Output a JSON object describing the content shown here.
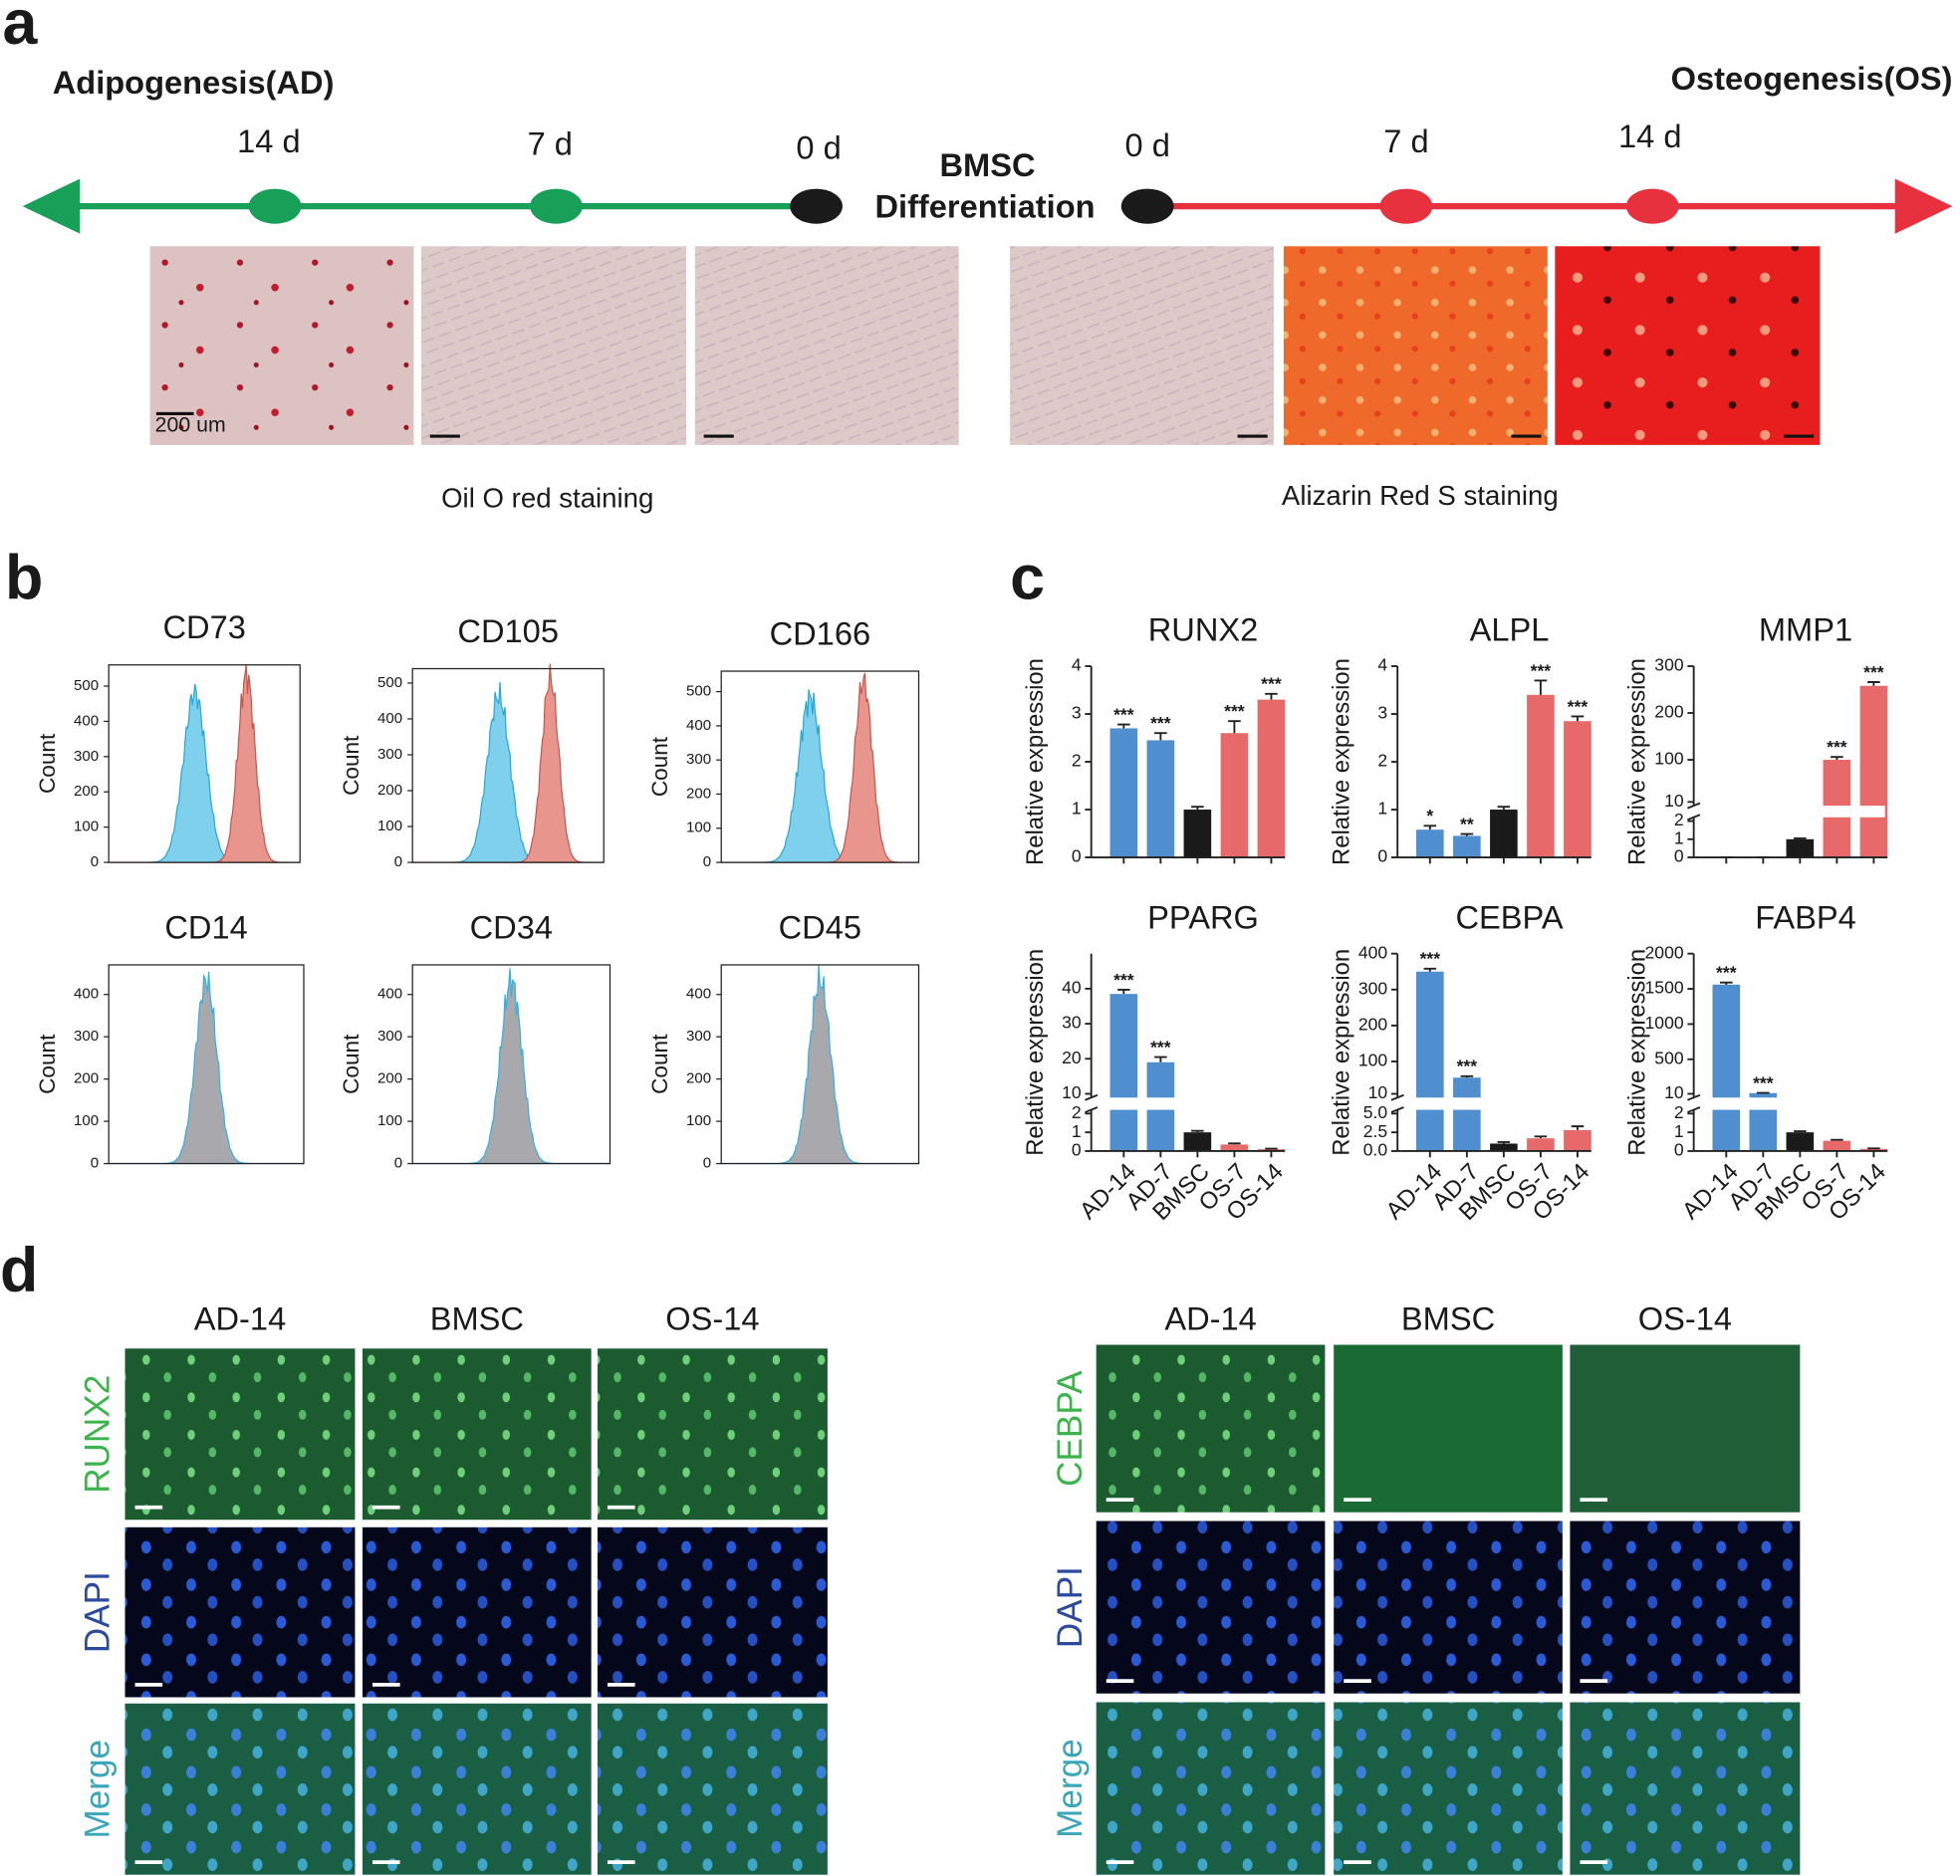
{
  "panel_a": {
    "label": "a",
    "left_title": "Adipogenesis(AD)",
    "right_title": "Osteogenesis(OS)",
    "center": [
      "BMSC",
      "Differentiation"
    ],
    "left_days": [
      "14 d",
      "7 d",
      "0 d"
    ],
    "right_days": [
      "0 d",
      "7 d",
      "14 d"
    ],
    "scale_label": "200 um",
    "captions": [
      "Oil O red staining",
      "Alizarin Red S  staining"
    ]
  },
  "panel_b": {
    "label": "b",
    "plots": [
      {
        "title": "CD73",
        "y_label": "Count",
        "ylim": [
          0,
          560
        ],
        "yticks": [
          0,
          100,
          200,
          300,
          400,
          500
        ]
      },
      {
        "title": "CD105",
        "y_label": "Count",
        "ylim": [
          0,
          540
        ],
        "yticks": [
          0,
          100,
          200,
          300,
          400,
          500
        ]
      },
      {
        "title": "CD166",
        "y_label": "Count",
        "ylim": [
          0,
          560
        ],
        "yticks": [
          0,
          100,
          200,
          300,
          400,
          500
        ]
      },
      {
        "title": "CD14",
        "y_label": "Count",
        "ylim": [
          0,
          470
        ],
        "yticks": [
          0,
          100,
          200,
          300,
          400
        ]
      },
      {
        "title": "CD34",
        "y_label": "Count",
        "ylim": [
          0,
          470
        ],
        "yticks": [
          0,
          100,
          200,
          300,
          400
        ]
      },
      {
        "title": "CD45",
        "y_label": "Count",
        "ylim": [
          0,
          470
        ],
        "yticks": [
          0,
          100,
          200,
          300,
          400
        ]
      }
    ]
  },
  "panel_c": {
    "label": "c"
  },
  "chart_data": [
    {
      "type": "bar",
      "title": "RUNX2",
      "y_label": "Relative expression",
      "values": [
        2.7,
        2.45,
        1.0,
        2.6,
        3.3
      ],
      "errors": [
        0.08,
        0.15,
        0.06,
        0.25,
        0.12
      ],
      "annotations": [
        "***",
        "***",
        null,
        "***",
        "***"
      ],
      "colors": [
        "#4f8fd0",
        "#4f8fd0",
        "#1a1a1a",
        "#e8696a",
        "#e8696a"
      ],
      "ylim": [
        0,
        4
      ],
      "yticks": [
        0,
        1,
        2,
        3,
        4
      ]
    },
    {
      "type": "bar",
      "title": "ALPL",
      "y_label": "Relative expression",
      "values": [
        0.58,
        0.45,
        1.0,
        3.4,
        2.85
      ],
      "errors": [
        0.08,
        0.04,
        0.06,
        0.3,
        0.1
      ],
      "annotations": [
        "*",
        "**",
        null,
        "***",
        "***"
      ],
      "colors": [
        "#4f8fd0",
        "#4f8fd0",
        "#1a1a1a",
        "#e8696a",
        "#e8696a"
      ],
      "ylim": [
        0,
        4
      ],
      "yticks": [
        0,
        1,
        2,
        3,
        4
      ]
    },
    {
      "type": "bar",
      "title": "MMP1",
      "y_label": "Relative expression",
      "values": [
        0,
        0,
        1.0,
        100,
        258
      ],
      "errors": [
        0,
        0,
        0.05,
        6,
        8
      ],
      "annotations": [
        null,
        null,
        null,
        "***",
        "***"
      ],
      "colors": [
        "#4f8fd0",
        "#4f8fd0",
        "#1a1a1a",
        "#e8696a",
        "#e8696a"
      ],
      "ylim": [
        0,
        300
      ],
      "ybreak": [
        2,
        10
      ],
      "yticks": [
        0,
        1,
        2,
        10,
        100,
        200,
        300
      ]
    },
    {
      "type": "bar",
      "title": "PPARG",
      "y_label": "Relative expression",
      "categories": [
        "AD-14",
        "AD-7",
        "BMSC",
        "OS-7",
        "OS-14"
      ],
      "values": [
        38.5,
        19,
        1.0,
        0.35,
        0.1
      ],
      "errors": [
        1.2,
        1.5,
        0.08,
        0.06,
        0.03
      ],
      "annotations": [
        "***",
        "***",
        null,
        null,
        null
      ],
      "colors": [
        "#4f8fd0",
        "#4f8fd0",
        "#1a1a1a",
        "#e8696a",
        "#e8696a"
      ],
      "ylim": [
        0,
        50
      ],
      "ybreak": [
        2,
        10
      ],
      "yticks": [
        0,
        1,
        2,
        10,
        20,
        30,
        40
      ]
    },
    {
      "type": "bar",
      "title": "CEBPA",
      "y_label": "Relative expression",
      "categories": [
        "AD-14",
        "AD-7",
        "BMSC",
        "OS-7",
        "OS-14"
      ],
      "values": [
        350,
        55,
        1.0,
        1.7,
        2.8
      ],
      "errors": [
        8,
        4,
        0.2,
        0.25,
        0.5
      ],
      "annotations": [
        "***",
        "***",
        null,
        null,
        null
      ],
      "colors": [
        "#4f8fd0",
        "#4f8fd0",
        "#1a1a1a",
        "#e8696a",
        "#e8696a"
      ],
      "ylim": [
        0,
        400
      ],
      "ybreak": [
        5,
        10
      ],
      "yticks": [
        {
          "value": 0,
          "label": "0.0"
        },
        {
          "value": 2.5,
          "label": "2.5"
        },
        {
          "value": 5,
          "label": "5.0"
        },
        10,
        100,
        200,
        300,
        400
      ]
    },
    {
      "type": "bar",
      "title": "FABP4",
      "y_label": "Relative expression",
      "categories": [
        "AD-14",
        "AD-7",
        "BMSC",
        "OS-7",
        "OS-14"
      ],
      "values": [
        1560,
        20,
        1.0,
        0.55,
        0.12
      ],
      "errors": [
        30,
        3,
        0.06,
        0.05,
        0.02
      ],
      "annotations": [
        "***",
        "***",
        null,
        null,
        null
      ],
      "colors": [
        "#4f8fd0",
        "#4f8fd0",
        "#1a1a1a",
        "#e8696a",
        "#e8696a"
      ],
      "ylim": [
        0,
        2000
      ],
      "ybreak": [
        2,
        10
      ],
      "yticks": [
        0,
        1,
        2,
        10,
        500,
        1000,
        1500,
        2000
      ]
    }
  ],
  "panel_d": {
    "label": "d",
    "left": {
      "columns": [
        "AD-14",
        "BMSC",
        "OS-14"
      ],
      "rows": [
        "RUNX2",
        "DAPI",
        "Merge"
      ]
    },
    "right": {
      "columns": [
        "AD-14",
        "BMSC",
        "OS-14"
      ],
      "rows": [
        "CEBPA",
        "DAPI",
        "Merge"
      ]
    }
  }
}
